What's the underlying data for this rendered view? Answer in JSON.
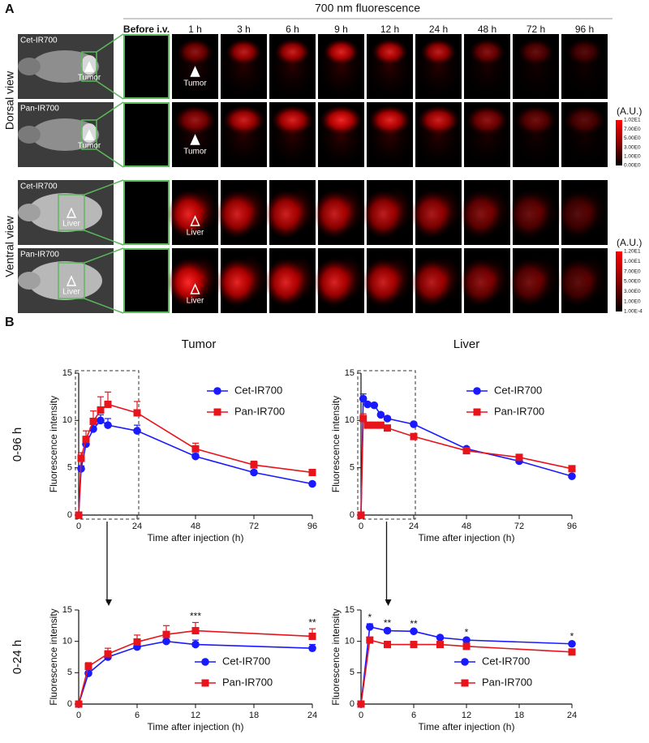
{
  "panel_a": {
    "label": "A",
    "title": "700 nm fluorescence",
    "columns": [
      "Before i.v.",
      "1 h",
      "3 h",
      "6 h",
      "9 h",
      "12 h",
      "24 h",
      "48 h",
      "72 h",
      "96 h"
    ],
    "views": [
      {
        "label": "Dorsal view",
        "rows": [
          {
            "name": "Cet-IR700",
            "marker": "Tumor"
          },
          {
            "name": "Pan-IR700",
            "marker": "Tumor"
          }
        ],
        "colorbar": {
          "unit": "(A.U.)",
          "ticks": [
            "1.02E1",
            "7.00E0",
            "5.00E0",
            "3.00E0",
            "1.00E0",
            "0.00E0"
          ]
        }
      },
      {
        "label": "Ventral view",
        "rows": [
          {
            "name": "Cet-IR700",
            "marker": "Liver"
          },
          {
            "name": "Pan-IR700",
            "marker": "Liver"
          }
        ],
        "colorbar": {
          "unit": "(A.U.)",
          "ticks": [
            "1.20E1",
            "1.00E1",
            "7.00E0",
            "5.00E0",
            "3.00E0",
            "1.00E0",
            "1.00E-4"
          ]
        }
      }
    ]
  },
  "panel_b": {
    "label": "B",
    "column_titles": [
      "Tumor",
      "Liver"
    ],
    "row_labels": [
      "0-96 h",
      "0-24 h"
    ]
  },
  "chart_data": [
    {
      "type": "line",
      "xlabel": "Time after injection (h)",
      "ylabel": "Fluorescence intensity",
      "x": [
        0,
        1,
        3,
        6,
        9,
        12,
        24,
        48,
        72,
        96
      ],
      "xlim": [
        0,
        96
      ],
      "xticks": [
        0,
        24,
        48,
        72,
        96
      ],
      "ylim": [
        0,
        15
      ],
      "yticks": [
        0,
        5,
        10,
        15
      ],
      "highlight": [
        0,
        24
      ],
      "legend": "upper right",
      "series": [
        {
          "name": "Cet-IR700",
          "color": "#1a1aff",
          "marker": "circle",
          "values": [
            0,
            4.9,
            7.5,
            9.1,
            10.0,
            9.5,
            8.9,
            6.2,
            4.5,
            3.3
          ],
          "errors": [
            0,
            0.3,
            0.4,
            0.5,
            0.6,
            0.7,
            0.6,
            0.3,
            0.2,
            0.2
          ]
        },
        {
          "name": "Pan-IR700",
          "color": "#e8141c",
          "marker": "square",
          "values": [
            0,
            6.0,
            8.0,
            9.9,
            11.1,
            11.7,
            10.8,
            7.0,
            5.3,
            4.5
          ],
          "errors": [
            0,
            0.6,
            0.9,
            1.1,
            1.4,
            1.3,
            1.2,
            0.6,
            0.4,
            0.3
          ]
        }
      ]
    },
    {
      "type": "line",
      "xlabel": "Time after injection (h)",
      "ylabel": "Fluorescence intensity",
      "x": [
        0,
        1,
        3,
        6,
        9,
        12,
        24,
        48,
        72,
        96
      ],
      "xlim": [
        0,
        96
      ],
      "xticks": [
        0,
        24,
        48,
        72,
        96
      ],
      "ylim": [
        0,
        15
      ],
      "yticks": [
        0,
        5,
        10,
        15
      ],
      "highlight": [
        0,
        24
      ],
      "legend": "upper right",
      "series": [
        {
          "name": "Cet-IR700",
          "color": "#1a1aff",
          "marker": "circle",
          "values": [
            0,
            12.3,
            11.7,
            11.6,
            10.6,
            10.2,
            9.6,
            7.0,
            5.7,
            4.1
          ],
          "errors": [
            0,
            0.5,
            0.2,
            0.2,
            0.2,
            0.2,
            0.2,
            0.2,
            0.2,
            0.2
          ]
        },
        {
          "name": "Pan-IR700",
          "color": "#e8141c",
          "marker": "square",
          "values": [
            0,
            10.2,
            9.5,
            9.5,
            9.5,
            9.2,
            8.3,
            6.8,
            6.1,
            4.9
          ],
          "errors": [
            0,
            0.5,
            0.2,
            0.2,
            0.2,
            0.2,
            0.2,
            0.2,
            0.2,
            0.2
          ]
        }
      ]
    },
    {
      "type": "line",
      "xlabel": "Time after injection (h)",
      "ylabel": "Fluorescence intensity",
      "x": [
        0,
        1,
        3,
        6,
        9,
        12,
        24
      ],
      "xlim": [
        0,
        24
      ],
      "xticks": [
        0,
        6,
        12,
        18,
        24
      ],
      "ylim": [
        0,
        15
      ],
      "yticks": [
        0,
        5,
        10,
        15
      ],
      "legend": "lower right",
      "annotations": [
        {
          "x": 12,
          "text": "***"
        },
        {
          "x": 24,
          "text": "**"
        }
      ],
      "series": [
        {
          "name": "Cet-IR700",
          "color": "#1a1aff",
          "marker": "circle",
          "values": [
            0,
            4.9,
            7.5,
            9.1,
            10.0,
            9.5,
            8.9
          ],
          "errors": [
            0,
            0.3,
            0.4,
            0.5,
            0.6,
            0.7,
            0.6
          ]
        },
        {
          "name": "Pan-IR700",
          "color": "#e8141c",
          "marker": "square",
          "values": [
            0,
            6.0,
            8.0,
            9.9,
            11.1,
            11.7,
            10.8
          ],
          "errors": [
            0,
            0.6,
            0.9,
            1.1,
            1.4,
            1.3,
            1.2
          ]
        }
      ]
    },
    {
      "type": "line",
      "xlabel": "Time after injection (h)",
      "ylabel": "Fluorescence intensity",
      "x": [
        0,
        1,
        3,
        6,
        9,
        12,
        24
      ],
      "xlim": [
        0,
        24
      ],
      "xticks": [
        0,
        6,
        12,
        18,
        24
      ],
      "ylim": [
        0,
        15
      ],
      "yticks": [
        0,
        5,
        10,
        15
      ],
      "legend": "lower right",
      "annotations": [
        {
          "x": 1,
          "text": "*"
        },
        {
          "x": 3,
          "text": "**"
        },
        {
          "x": 6,
          "text": "**"
        },
        {
          "x": 12,
          "text": "*"
        },
        {
          "x": 24,
          "text": "*"
        }
      ],
      "series": [
        {
          "name": "Cet-IR700",
          "color": "#1a1aff",
          "marker": "circle",
          "values": [
            0,
            12.3,
            11.7,
            11.6,
            10.6,
            10.2,
            9.6
          ],
          "errors": [
            0,
            0.5,
            0.2,
            0.2,
            0.2,
            0.2,
            0.2
          ]
        },
        {
          "name": "Pan-IR700",
          "color": "#e8141c",
          "marker": "square",
          "values": [
            0,
            10.2,
            9.5,
            9.5,
            9.5,
            9.2,
            8.3
          ],
          "errors": [
            0,
            0.5,
            0.2,
            0.2,
            0.2,
            0.2,
            0.2
          ]
        }
      ]
    }
  ]
}
